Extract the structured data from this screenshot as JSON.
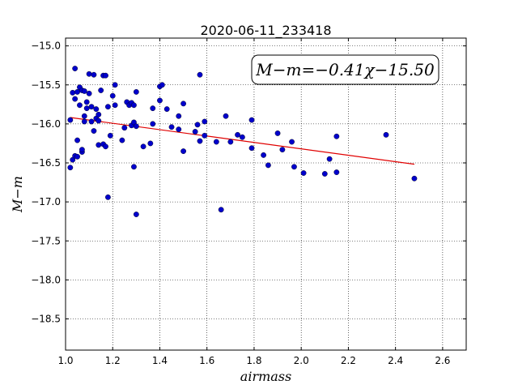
{
  "chart_data": {
    "type": "scatter",
    "title": "2020-06-11_233418",
    "xlabel": "airmass",
    "ylabel": "M−m",
    "xlim": [
      1.0,
      2.7
    ],
    "ylim": [
      -18.9,
      -14.9
    ],
    "y_inverted": true,
    "grid": true,
    "x_ticks": [
      1.0,
      1.2,
      1.4,
      1.6,
      1.8,
      2.0,
      2.2,
      2.4,
      2.6
    ],
    "x_tick_labels": [
      "1.0",
      "1.2",
      "1.4",
      "1.6",
      "1.8",
      "2.0",
      "2.2",
      "2.4",
      "2.6"
    ],
    "y_ticks": [
      -15.0,
      -15.5,
      -16.0,
      -16.5,
      -17.0,
      -17.5,
      -18.0,
      -18.5
    ],
    "y_tick_labels": [
      "−15.0",
      "−15.5",
      "−16.0",
      "−16.5",
      "−17.0",
      "−17.5",
      "−18.0",
      "−18.5"
    ],
    "annotation": "M−m=−0.41χ−15.50",
    "annotation_placement": "top-right",
    "fit": {
      "slope": -0.41,
      "intercept": -15.5,
      "x_range": [
        1.02,
        2.48
      ],
      "color": "#e00000"
    },
    "marker_color": "#0000cc",
    "points": [
      {
        "x": 1.02,
        "y": -15.95
      },
      {
        "x": 1.02,
        "y": -16.56
      },
      {
        "x": 1.03,
        "y": -15.6
      },
      {
        "x": 1.03,
        "y": -16.46
      },
      {
        "x": 1.04,
        "y": -16.41
      },
      {
        "x": 1.04,
        "y": -15.29
      },
      {
        "x": 1.04,
        "y": -15.68
      },
      {
        "x": 1.05,
        "y": -16.42
      },
      {
        "x": 1.05,
        "y": -16.21
      },
      {
        "x": 1.05,
        "y": -15.59
      },
      {
        "x": 1.06,
        "y": -15.76
      },
      {
        "x": 1.06,
        "y": -15.53
      },
      {
        "x": 1.07,
        "y": -15.57
      },
      {
        "x": 1.07,
        "y": -16.36
      },
      {
        "x": 1.07,
        "y": -16.33
      },
      {
        "x": 1.08,
        "y": -15.97
      },
      {
        "x": 1.08,
        "y": -15.9
      },
      {
        "x": 1.08,
        "y": -15.58
      },
      {
        "x": 1.09,
        "y": -15.72
      },
      {
        "x": 1.09,
        "y": -15.8
      },
      {
        "x": 1.1,
        "y": -15.61
      },
      {
        "x": 1.1,
        "y": -15.36
      },
      {
        "x": 1.11,
        "y": -15.97
      },
      {
        "x": 1.11,
        "y": -15.78
      },
      {
        "x": 1.12,
        "y": -15.37
      },
      {
        "x": 1.12,
        "y": -16.09
      },
      {
        "x": 1.13,
        "y": -15.81
      },
      {
        "x": 1.13,
        "y": -15.93
      },
      {
        "x": 1.14,
        "y": -16.27
      },
      {
        "x": 1.14,
        "y": -15.96
      },
      {
        "x": 1.14,
        "y": -15.88
      },
      {
        "x": 1.15,
        "y": -15.57
      },
      {
        "x": 1.16,
        "y": -15.38
      },
      {
        "x": 1.16,
        "y": -16.26
      },
      {
        "x": 1.17,
        "y": -16.29
      },
      {
        "x": 1.17,
        "y": -15.38
      },
      {
        "x": 1.18,
        "y": -15.78
      },
      {
        "x": 1.18,
        "y": -16.94
      },
      {
        "x": 1.19,
        "y": -16.15
      },
      {
        "x": 1.2,
        "y": -15.64
      },
      {
        "x": 1.21,
        "y": -15.5
      },
      {
        "x": 1.21,
        "y": -15.76
      },
      {
        "x": 1.24,
        "y": -16.21
      },
      {
        "x": 1.25,
        "y": -16.05
      },
      {
        "x": 1.26,
        "y": -15.72
      },
      {
        "x": 1.27,
        "y": -15.76
      },
      {
        "x": 1.28,
        "y": -15.73
      },
      {
        "x": 1.28,
        "y": -16.02
      },
      {
        "x": 1.29,
        "y": -15.76
      },
      {
        "x": 1.29,
        "y": -15.98
      },
      {
        "x": 1.29,
        "y": -16.55
      },
      {
        "x": 1.3,
        "y": -15.59
      },
      {
        "x": 1.3,
        "y": -16.03
      },
      {
        "x": 1.3,
        "y": -17.16
      },
      {
        "x": 1.33,
        "y": -16.29
      },
      {
        "x": 1.36,
        "y": -16.25
      },
      {
        "x": 1.37,
        "y": -15.8
      },
      {
        "x": 1.37,
        "y": -16.0
      },
      {
        "x": 1.4,
        "y": -15.7
      },
      {
        "x": 1.4,
        "y": -15.52
      },
      {
        "x": 1.41,
        "y": -15.5
      },
      {
        "x": 1.43,
        "y": -15.81
      },
      {
        "x": 1.45,
        "y": -16.04
      },
      {
        "x": 1.48,
        "y": -15.9
      },
      {
        "x": 1.48,
        "y": -16.07
      },
      {
        "x": 1.5,
        "y": -15.74
      },
      {
        "x": 1.5,
        "y": -16.35
      },
      {
        "x": 1.55,
        "y": -16.1
      },
      {
        "x": 1.56,
        "y": -16.01
      },
      {
        "x": 1.57,
        "y": -16.22
      },
      {
        "x": 1.57,
        "y": -15.37
      },
      {
        "x": 1.59,
        "y": -15.97
      },
      {
        "x": 1.59,
        "y": -16.15
      },
      {
        "x": 1.64,
        "y": -16.23
      },
      {
        "x": 1.66,
        "y": -17.1
      },
      {
        "x": 1.68,
        "y": -15.9
      },
      {
        "x": 1.7,
        "y": -16.23
      },
      {
        "x": 1.73,
        "y": -16.14
      },
      {
        "x": 1.75,
        "y": -16.17
      },
      {
        "x": 1.79,
        "y": -15.95
      },
      {
        "x": 1.79,
        "y": -16.31
      },
      {
        "x": 1.84,
        "y": -16.4
      },
      {
        "x": 1.86,
        "y": -16.53
      },
      {
        "x": 1.9,
        "y": -16.12
      },
      {
        "x": 1.92,
        "y": -16.33
      },
      {
        "x": 1.96,
        "y": -16.23
      },
      {
        "x": 1.97,
        "y": -16.55
      },
      {
        "x": 2.01,
        "y": -16.63
      },
      {
        "x": 2.1,
        "y": -16.64
      },
      {
        "x": 2.12,
        "y": -16.45
      },
      {
        "x": 2.15,
        "y": -16.62
      },
      {
        "x": 2.15,
        "y": -16.16
      },
      {
        "x": 2.36,
        "y": -16.14
      },
      {
        "x": 2.48,
        "y": -16.7
      }
    ]
  }
}
